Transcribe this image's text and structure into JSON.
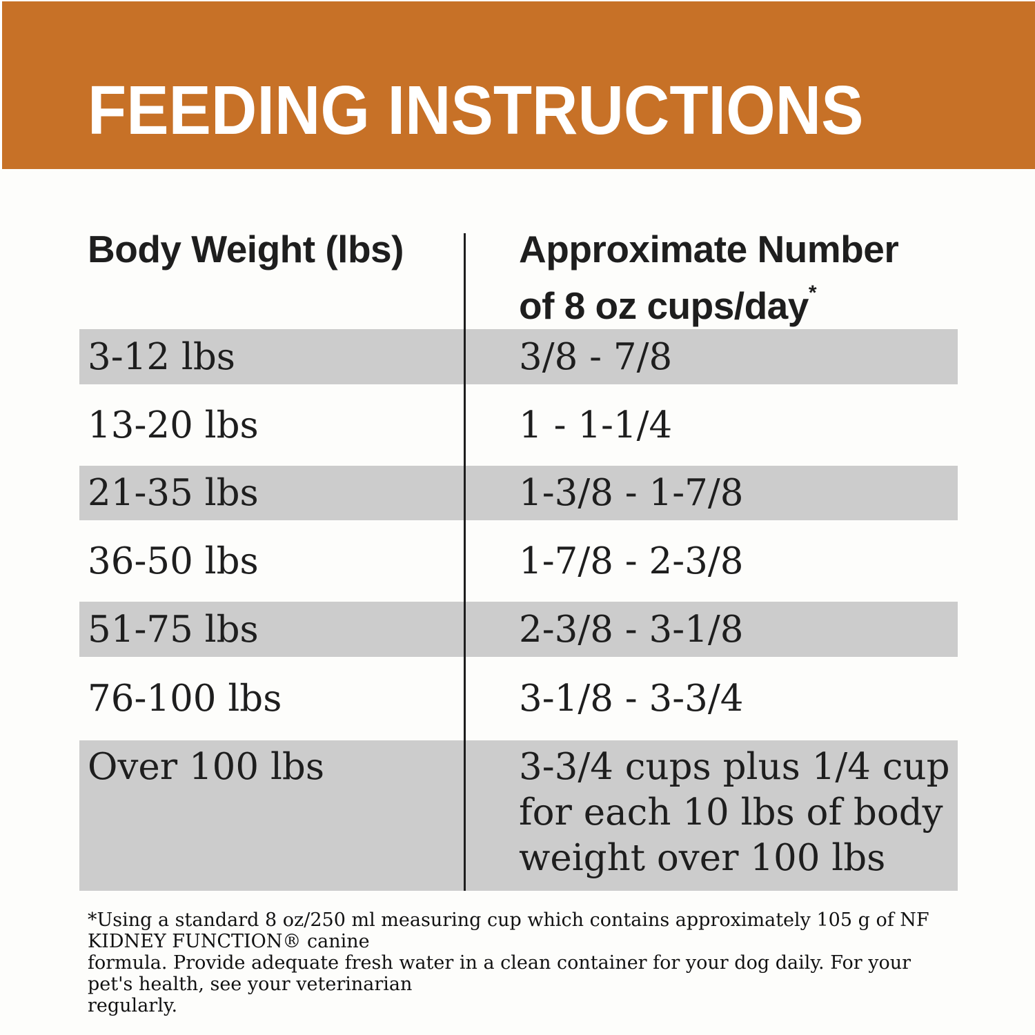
{
  "title": "FEEDING INSTRUCTIONS",
  "colors": {
    "banner_orange": "#C77127",
    "row_shade_gray": "#CCCCCC",
    "text_ink": "#1E1E1E",
    "title_white": "#FFFFFF"
  },
  "table": {
    "header": {
      "col1": "Body Weight (lbs)",
      "col2": "Approximate Number\nof 8 oz cups/day",
      "col2_note_symbol": "*"
    },
    "rows": [
      {
        "weight": "3-12 lbs",
        "cups": "3/8 - 7/8",
        "shaded": true
      },
      {
        "weight": "13-20 lbs",
        "cups": "1 - 1-1/4",
        "shaded": false
      },
      {
        "weight": "21-35 lbs",
        "cups": "1-3/8 - 1-7/8",
        "shaded": true
      },
      {
        "weight": "36-50 lbs",
        "cups": "1-7/8 - 2-3/8",
        "shaded": false
      },
      {
        "weight": "51-75 lbs",
        "cups": "2-3/8 - 3-1/8",
        "shaded": true
      },
      {
        "weight": "76-100 lbs",
        "cups": "3-1/8 - 3-3/4",
        "shaded": false
      },
      {
        "weight": "Over 100 lbs",
        "cups": "3-3/4 cups plus 1/4 cup\nfor each 10 lbs of body\nweight over 100 lbs",
        "shaded": true
      }
    ]
  },
  "footnote": "*Using a standard 8 oz/250 ml measuring cup which contains approximately 105 g of NF KIDNEY FUNCTION® canine\nformula. Provide adequate fresh water in a clean container for your dog daily. For your pet's health, see your veterinarian\nregularly."
}
